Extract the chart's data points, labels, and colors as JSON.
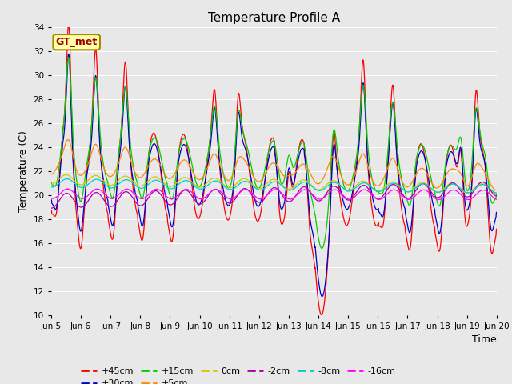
{
  "title": "Temperature Profile A",
  "xlabel": "Time",
  "ylabel": "Temperature (C)",
  "ylim": [
    10,
    34
  ],
  "xlim": [
    0,
    15
  ],
  "xtick_labels": [
    "Jun 5",
    "Jun 6",
    "Jun 7",
    "Jun 8",
    "Jun 9",
    "Jun 10",
    "Jun 11",
    "Jun 12",
    "Jun 13",
    "Jun 14",
    "Jun 15",
    "Jun 16",
    "Jun 17",
    "Jun 18",
    "Jun 19",
    "Jun 20"
  ],
  "colors": {
    "+45cm": "#FF0000",
    "+30cm": "#0000CC",
    "+15cm": "#00CC00",
    "+5cm": "#FF8800",
    "0cm": "#CCCC00",
    "-2cm": "#AA00AA",
    "-8cm": "#00CCCC",
    "-16cm": "#FF00FF"
  },
  "bg_color": "#E8E8E8",
  "legend_label": "GT_met",
  "legend_bg": "#FFFFAA",
  "legend_edge": "#AA8800"
}
